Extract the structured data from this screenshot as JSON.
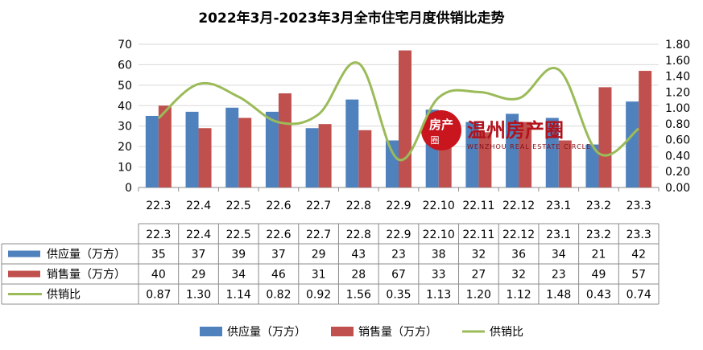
{
  "title": "2022年3月-2023年3月全市住宅月度供销比走势",
  "colors": {
    "supply": "#4F81BD",
    "sales": "#C0504D",
    "ratio": "#9BBB59",
    "grid": "#D9D9D9",
    "axis": "#8C8C8C"
  },
  "chart_data": {
    "type": "bar",
    "categories": [
      "22.3",
      "22.4",
      "22.5",
      "22.6",
      "22.7",
      "22.8",
      "22.9",
      "22.10",
      "22.11",
      "22.12",
      "23.1",
      "23.2",
      "23.3"
    ],
    "series": [
      {
        "name": "供应量（万方）",
        "type": "bar",
        "axis": "left",
        "color": "#4F81BD",
        "values": [
          35,
          37,
          39,
          37,
          29,
          43,
          23,
          38,
          32,
          36,
          34,
          21,
          42
        ]
      },
      {
        "name": "销售量（万方）",
        "type": "bar",
        "axis": "left",
        "color": "#C0504D",
        "values": [
          40,
          29,
          34,
          46,
          31,
          28,
          67,
          33,
          27,
          32,
          23,
          49,
          57
        ]
      },
      {
        "name": "供销比",
        "type": "line",
        "axis": "right",
        "color": "#9BBB59",
        "values": [
          0.87,
          1.3,
          1.14,
          0.82,
          0.92,
          1.56,
          0.35,
          1.13,
          1.2,
          1.12,
          1.48,
          0.43,
          0.74
        ],
        "labels": [
          "0.87",
          "1.30",
          "1.14",
          "0.82",
          "0.92",
          "1.56",
          "0.35",
          "1.13",
          "1.20",
          "1.12",
          "1.48",
          "0.43",
          "0.74"
        ]
      }
    ],
    "ylim_left": [
      0,
      70
    ],
    "yticks_left": [
      "0",
      "10",
      "20",
      "30",
      "40",
      "50",
      "60",
      "70"
    ],
    "ylim_right": [
      0,
      1.8
    ],
    "yticks_right": [
      "0.00",
      "0.20",
      "0.40",
      "0.60",
      "0.80",
      "1.00",
      "1.20",
      "1.40",
      "1.60",
      "1.80"
    ],
    "grid": true,
    "legend_position": "bottom",
    "data_table": true
  },
  "watermark": {
    "badge_top": "房产",
    "badge_bottom": "圈",
    "name": "温州房产圈",
    "subtitle": "WENZHOU REAL ESTATE CIRCLE"
  }
}
